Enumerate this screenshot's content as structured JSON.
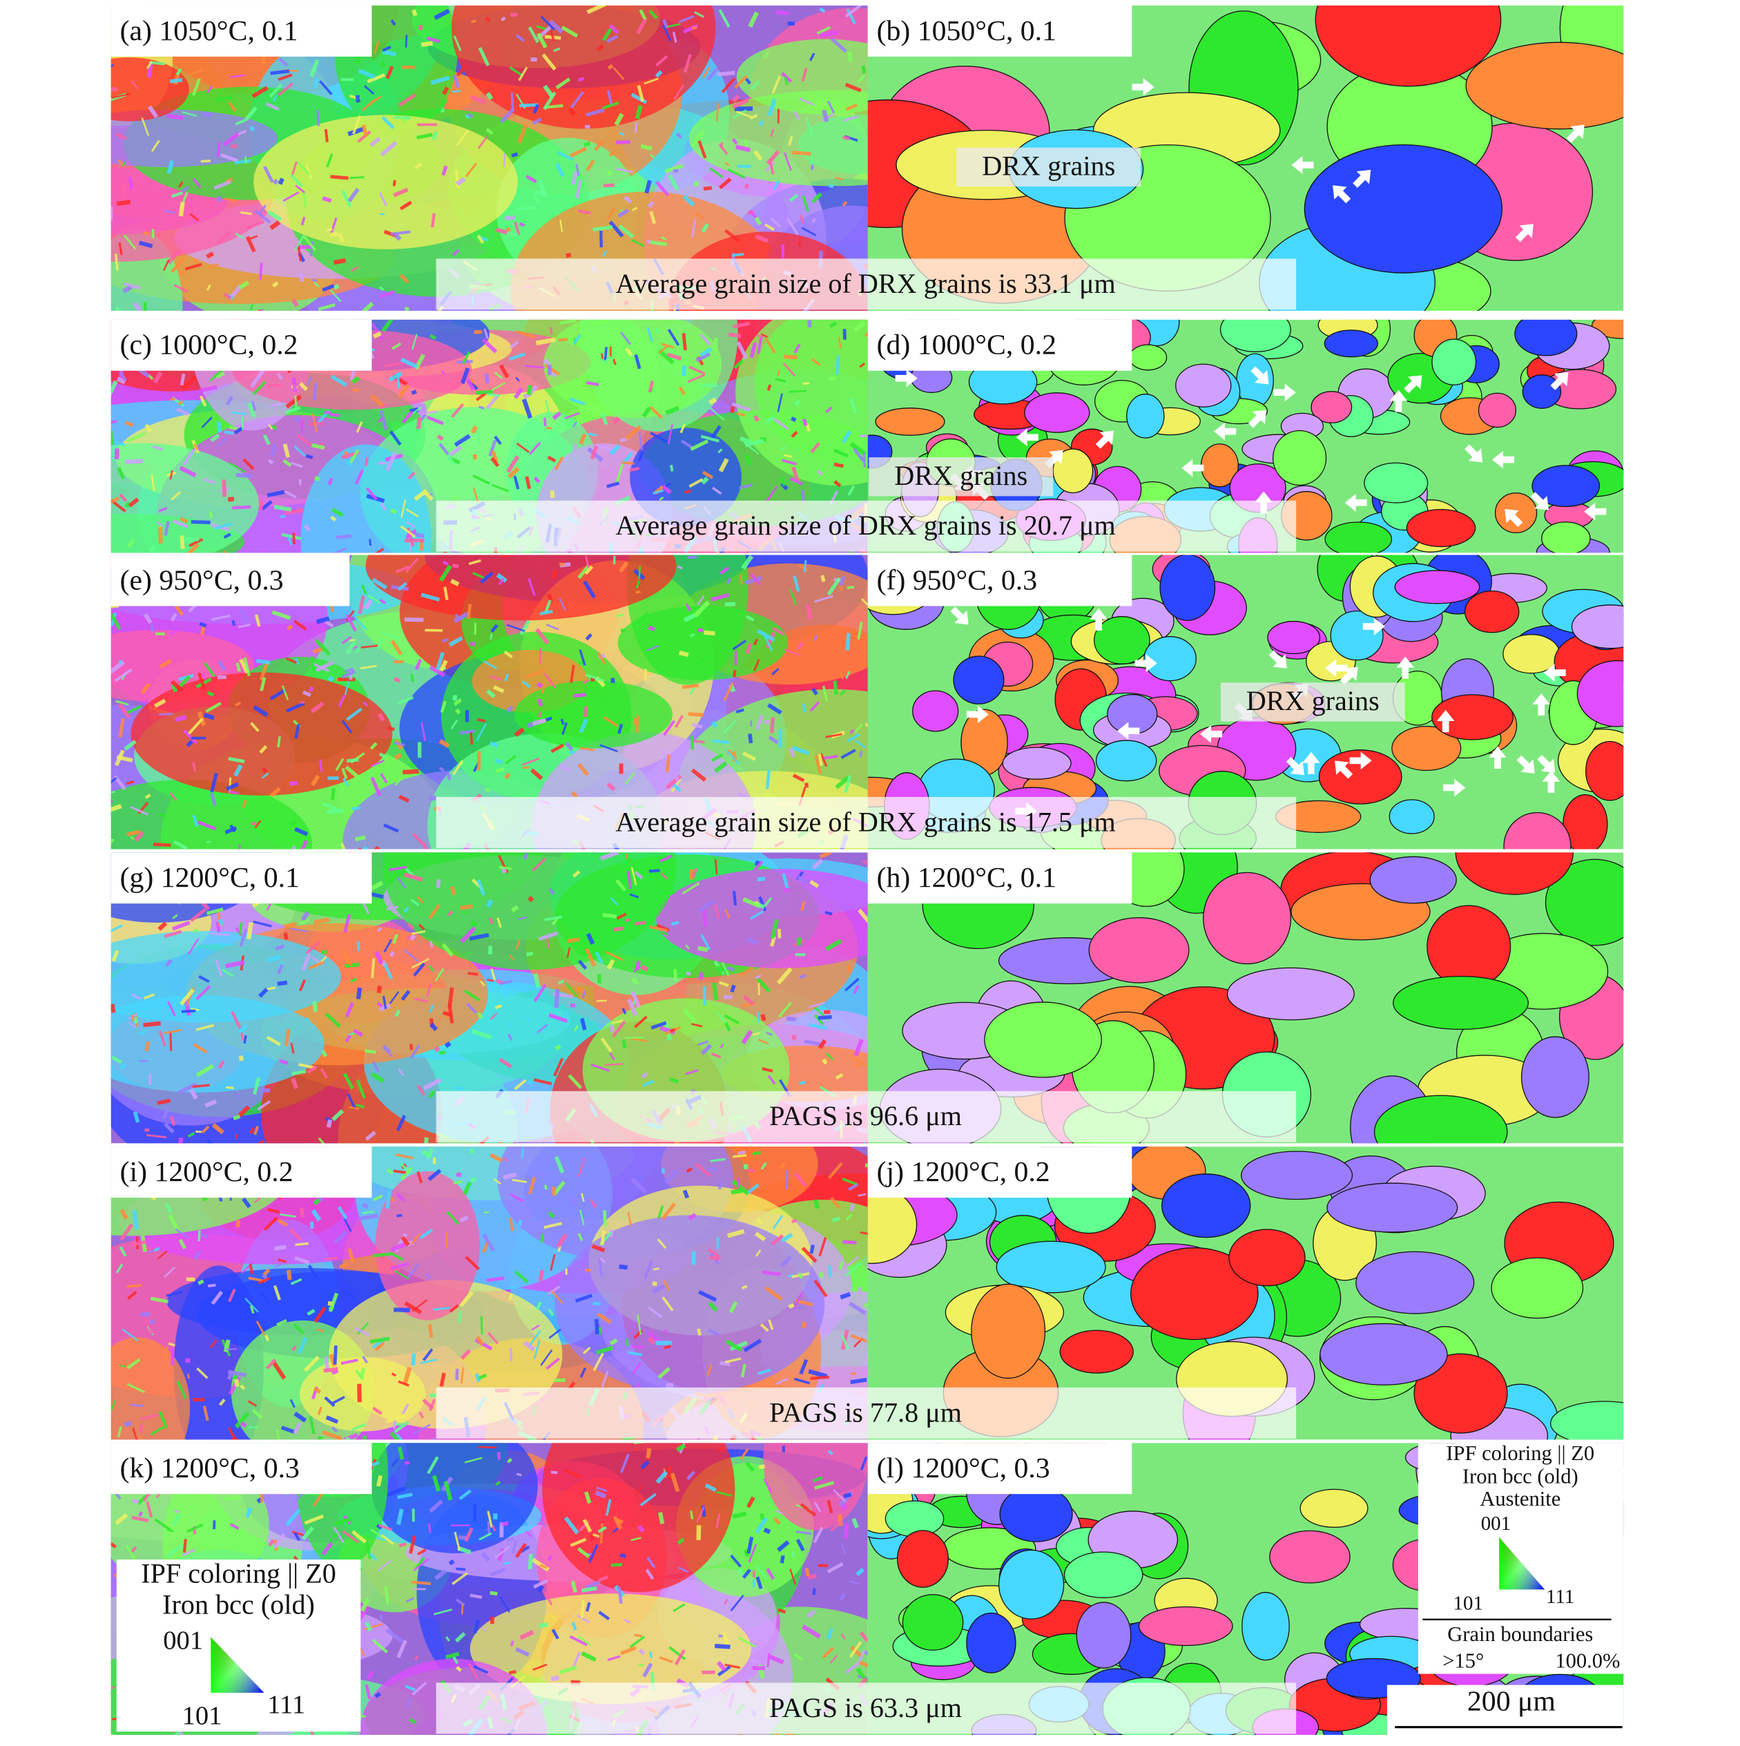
{
  "panels": [
    {
      "label": "(a) 1050°C, 0.1",
      "caption": "Average grain size of DRX grains is 33.1 μm"
    },
    {
      "label": "(b) 1050°C, 0.1",
      "annotation": "DRX grains"
    },
    {
      "label": "(c) 1000°C, 0.2",
      "caption": "Average grain size of DRX grains is 20.7 μm"
    },
    {
      "label": "(d) 1000°C, 0.2",
      "annotation": "DRX grains"
    },
    {
      "label": "(e) 950°C, 0.3",
      "caption": "Average grain size of DRX grains is 17.5 μm"
    },
    {
      "label": "(f) 950°C, 0.3",
      "annotation": "DRX grains"
    },
    {
      "label": "(g) 1200°C, 0.1",
      "caption": "PAGS is 96.6 μm"
    },
    {
      "label": "(h) 1200°C, 0.1"
    },
    {
      "label": "(i) 1200°C, 0.2",
      "caption": "PAGS is 77.8 μm"
    },
    {
      "label": "(j) 1200°C, 0.2"
    },
    {
      "label": "(k) 1200°C, 0.3",
      "caption": "PAGS is 63.3 μm"
    },
    {
      "label": "(l) 1200°C, 0.3"
    }
  ],
  "legend_left": {
    "title": "IPF coloring || Z0",
    "phase": "Iron bcc (old)",
    "corners": [
      "001",
      "101",
      "111"
    ]
  },
  "legend_right": {
    "title": "IPF coloring || Z0",
    "phase": "Iron bcc (old)",
    "subphase": "Austenite",
    "corners": [
      "001",
      "101",
      "111"
    ],
    "boundaries_title": "Grain boundaries",
    "boundary_angle": ">15°",
    "boundary_fraction": "100.0%"
  },
  "scale_bar": "200 μm"
}
